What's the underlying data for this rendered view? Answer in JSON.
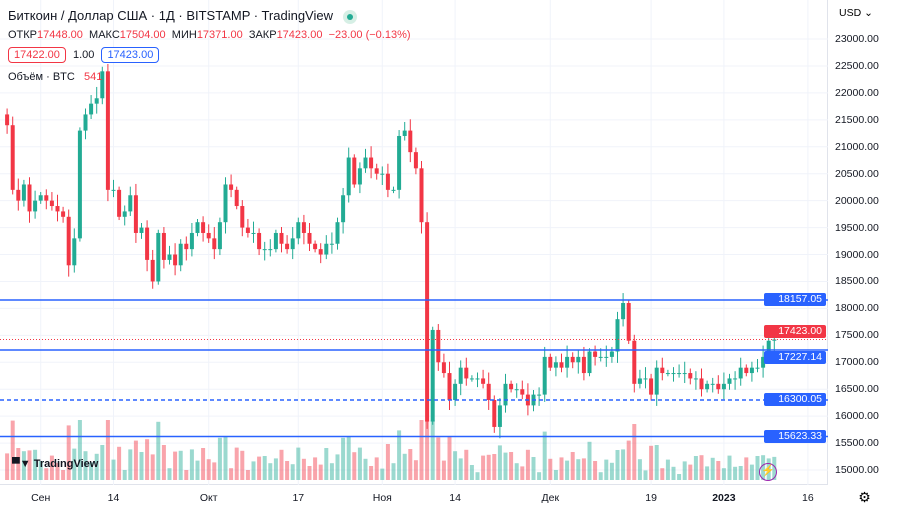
{
  "header": {
    "title": "Биткоин / Доллар США · 1Д · BITSTAMP · TradingView",
    "open_label": "ОТКР",
    "open": "17448.00",
    "high_label": "МАКС",
    "high": "17504.00",
    "low_label": "МИН",
    "low": "17371.00",
    "close_label": "ЗАКР",
    "close": "17423.00",
    "change": "−23.00 (−0.13%)",
    "bid": "17422.00",
    "spread": "1.00",
    "ask": "17423.00",
    "volume_label": "Объём · BTC",
    "volume": "541"
  },
  "axis": {
    "currency": "USD",
    "ticks": [
      "23000.00",
      "22500.00",
      "22000.00",
      "21500.00",
      "21000.00",
      "20500.00",
      "20000.00",
      "19500.00",
      "19000.00",
      "18500.00",
      "18000.00",
      "17500.00",
      "17000.00",
      "16500.00",
      "16000.00",
      "15500.00",
      "15000.00"
    ]
  },
  "levels": [
    {
      "price": 18157.05,
      "label": "18157.05",
      "style": "solid"
    },
    {
      "price": 17227.14,
      "label": "17227.14",
      "style": "solid"
    },
    {
      "price": 16300.05,
      "label": "16300.05",
      "style": "dashed"
    },
    {
      "price": 15623.33,
      "label": "15623.33",
      "style": "solid"
    }
  ],
  "last_price": {
    "price": 17423,
    "label": "17423.00"
  },
  "time_labels": [
    {
      "t": "Сен",
      "d": 7
    },
    {
      "t": "14",
      "d": 20
    },
    {
      "t": "Окт",
      "d": 37
    },
    {
      "t": "17",
      "d": 53
    },
    {
      "t": "Ноя",
      "d": 68
    },
    {
      "t": "14",
      "d": 81
    },
    {
      "t": "Дек",
      "d": 98
    },
    {
      "t": "19",
      "d": 116
    },
    {
      "t": "2023",
      "d": 129
    },
    {
      "t": "16",
      "d": 144
    }
  ],
  "logo": "TradingView",
  "colors": {
    "up": "#22ab94",
    "down": "#f23645",
    "line": "#2962ff"
  },
  "closes": [
    21600,
    21400,
    20200,
    20000,
    20300,
    19800,
    20000,
    20100,
    20000,
    19900,
    19800,
    19700,
    18800,
    19300,
    21300,
    21600,
    21800,
    21900,
    22400,
    20200,
    20200,
    19700,
    19800,
    20100,
    19400,
    19500,
    18900,
    18500,
    19400,
    18900,
    19000,
    18800,
    19200,
    19100,
    19400,
    19600,
    19400,
    19300,
    19100,
    19600,
    20300,
    20200,
    19900,
    19500,
    19400,
    19400,
    19100,
    19100,
    19100,
    19400,
    19200,
    19100,
    19300,
    19600,
    19400,
    19200,
    19100,
    19000,
    19200,
    19200,
    19600,
    20100,
    20800,
    20300,
    20600,
    20800,
    20600,
    20500,
    20500,
    20200,
    20200,
    21200,
    21300,
    20900,
    20600,
    19600,
    15900,
    17600,
    17000,
    16800,
    16300,
    16600,
    16900,
    16700,
    16700,
    16700,
    16600,
    16300,
    15800,
    16200,
    16600,
    16500,
    16500,
    16400,
    16200,
    16400,
    16400,
    17100,
    16900,
    17000,
    16900,
    17100,
    17000,
    17100,
    16800,
    17200,
    17100,
    17100,
    17100,
    17200,
    17800,
    18100,
    17400,
    16600,
    16700,
    16700,
    16400,
    16900,
    16800,
    16800,
    16800,
    16800,
    16800,
    16700,
    16700,
    16500,
    16600,
    16600,
    16500,
    16600,
    16700,
    16700,
    16900,
    16800,
    16900,
    16900,
    17100,
    17400,
    17423
  ]
}
